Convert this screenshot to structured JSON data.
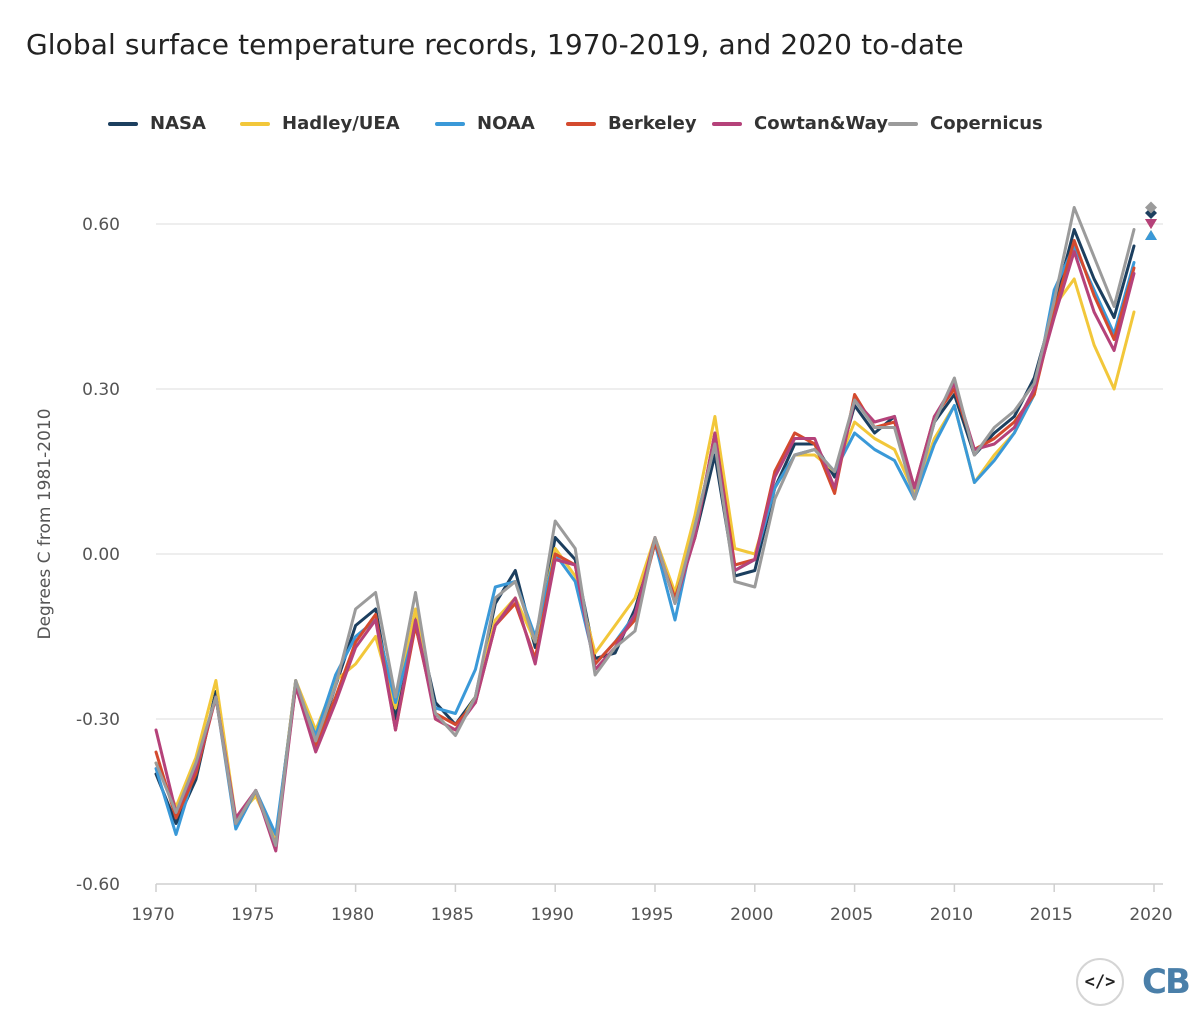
{
  "chart_data": {
    "type": "line",
    "title": "Global surface temperature records, 1970-2019, and 2020 to-date",
    "xlabel": "",
    "ylabel": "Degrees C from 1981-2010",
    "xlim": [
      1970,
      2020
    ],
    "ylim": [
      -0.6,
      0.6
    ],
    "x_ticks": [
      1970,
      1975,
      1980,
      1985,
      1990,
      1995,
      2000,
      2005,
      2010,
      2015,
      2020
    ],
    "y_ticks": [
      {
        "value": -0.6,
        "label": "-0.60"
      },
      {
        "value": -0.3,
        "label": "-0.30"
      },
      {
        "value": 0.0,
        "label": "0.00"
      },
      {
        "value": 0.3,
        "label": "0.30"
      },
      {
        "value": 0.6,
        "label": "0.60"
      }
    ],
    "grid": true,
    "legend_position": "top",
    "x": [
      1970,
      1971,
      1972,
      1973,
      1974,
      1975,
      1976,
      1977,
      1978,
      1979,
      1980,
      1981,
      1982,
      1983,
      1984,
      1985,
      1986,
      1987,
      1988,
      1989,
      1990,
      1991,
      1992,
      1993,
      1994,
      1995,
      1996,
      1997,
      1998,
      1999,
      2000,
      2001,
      2002,
      2003,
      2004,
      2005,
      2006,
      2007,
      2008,
      2009,
      2010,
      2011,
      2012,
      2013,
      2014,
      2015,
      2016,
      2017,
      2018,
      2019
    ],
    "series": [
      {
        "name": "NASA",
        "color": "#1c3f5f",
        "marker_2020": "diamond",
        "value_2020": 0.62,
        "values": [
          -0.4,
          -0.49,
          -0.41,
          -0.25,
          -0.49,
          -0.43,
          -0.52,
          -0.23,
          -0.35,
          -0.24,
          -0.13,
          -0.1,
          -0.3,
          -0.11,
          -0.27,
          -0.31,
          -0.26,
          -0.09,
          -0.03,
          -0.17,
          0.03,
          -0.01,
          -0.19,
          -0.18,
          -0.1,
          0.02,
          -0.07,
          0.03,
          0.18,
          -0.04,
          -0.03,
          0.12,
          0.2,
          0.2,
          0.14,
          0.27,
          0.22,
          0.25,
          0.11,
          0.24,
          0.29,
          0.18,
          0.22,
          0.25,
          0.32,
          0.45,
          0.59,
          0.5,
          0.43,
          0.56
        ]
      },
      {
        "name": "Hadley/UEA",
        "color": "#f2c73a",
        "marker_2020": "triangle-up",
        "value_2020": 0.58,
        "values": [
          -0.38,
          -0.46,
          -0.37,
          -0.23,
          -0.48,
          -0.44,
          -0.52,
          -0.23,
          -0.32,
          -0.23,
          -0.2,
          -0.15,
          -0.28,
          -0.1,
          -0.3,
          -0.32,
          -0.26,
          -0.12,
          -0.08,
          -0.16,
          0.01,
          -0.04,
          -0.18,
          -0.13,
          -0.08,
          0.03,
          -0.07,
          0.07,
          0.25,
          0.01,
          0.0,
          0.12,
          0.18,
          0.18,
          0.15,
          0.24,
          0.21,
          0.19,
          0.11,
          0.21,
          0.27,
          0.13,
          0.18,
          0.22,
          0.29,
          0.45,
          0.5,
          0.38,
          0.3,
          0.44
        ]
      },
      {
        "name": "NOAA",
        "color": "#3a99d8",
        "marker_2020": "triangle-up",
        "value_2020": 0.58,
        "values": [
          -0.39,
          -0.51,
          -0.39,
          -0.26,
          -0.5,
          -0.43,
          -0.51,
          -0.24,
          -0.33,
          -0.22,
          -0.15,
          -0.12,
          -0.27,
          -0.13,
          -0.28,
          -0.29,
          -0.21,
          -0.06,
          -0.05,
          -0.15,
          0.0,
          -0.05,
          -0.2,
          -0.16,
          -0.11,
          0.02,
          -0.12,
          0.05,
          0.2,
          -0.03,
          -0.01,
          0.12,
          0.18,
          0.19,
          0.15,
          0.22,
          0.19,
          0.17,
          0.1,
          0.2,
          0.27,
          0.13,
          0.17,
          0.22,
          0.29,
          0.48,
          0.56,
          0.48,
          0.4,
          0.53
        ]
      },
      {
        "name": "Berkeley",
        "color": "#d44a2e",
        "marker_2020": "triangle-down",
        "value_2020": 0.6,
        "values": [
          -0.36,
          -0.48,
          -0.4,
          -0.26,
          -0.49,
          -0.43,
          -0.53,
          -0.24,
          -0.35,
          -0.26,
          -0.16,
          -0.11,
          -0.32,
          -0.13,
          -0.29,
          -0.31,
          -0.27,
          -0.13,
          -0.09,
          -0.19,
          0.0,
          -0.02,
          -0.2,
          -0.16,
          -0.12,
          0.02,
          -0.08,
          0.03,
          0.22,
          -0.02,
          -0.01,
          0.15,
          0.22,
          0.2,
          0.11,
          0.29,
          0.23,
          0.24,
          0.12,
          0.25,
          0.3,
          0.19,
          0.21,
          0.24,
          0.29,
          0.44,
          0.57,
          0.47,
          0.39,
          0.52
        ]
      },
      {
        "name": "Cowtan&Way",
        "color": "#b5427a",
        "marker_2020": "triangle-down",
        "value_2020": 0.6,
        "values": [
          -0.32,
          -0.47,
          -0.39,
          -0.26,
          -0.48,
          -0.43,
          -0.54,
          -0.24,
          -0.36,
          -0.27,
          -0.17,
          -0.12,
          -0.32,
          -0.12,
          -0.3,
          -0.32,
          -0.27,
          -0.13,
          -0.08,
          -0.2,
          -0.01,
          -0.02,
          -0.21,
          -0.17,
          -0.11,
          0.03,
          -0.09,
          0.03,
          0.22,
          -0.03,
          -0.01,
          0.14,
          0.21,
          0.21,
          0.12,
          0.28,
          0.24,
          0.25,
          0.12,
          0.25,
          0.31,
          0.19,
          0.2,
          0.23,
          0.3,
          0.43,
          0.55,
          0.44,
          0.37,
          0.51
        ]
      },
      {
        "name": "Copernicus",
        "color": "#9b9b9b",
        "marker_2020": "diamond",
        "value_2020": 0.63,
        "values": [
          -0.38,
          -0.47,
          -0.38,
          -0.26,
          -0.49,
          -0.43,
          -0.53,
          -0.23,
          -0.34,
          -0.24,
          -0.1,
          -0.07,
          -0.26,
          -0.07,
          -0.29,
          -0.33,
          -0.26,
          -0.08,
          -0.05,
          -0.16,
          0.06,
          0.01,
          -0.22,
          -0.17,
          -0.14,
          0.03,
          -0.09,
          0.05,
          0.2,
          -0.05,
          -0.06,
          0.1,
          0.18,
          0.19,
          0.15,
          0.28,
          0.23,
          0.23,
          0.1,
          0.24,
          0.32,
          0.18,
          0.23,
          0.26,
          0.31,
          0.46,
          0.63,
          0.54,
          0.45,
          0.59
        ]
      }
    ]
  },
  "branding": {
    "embed_icon": "</>",
    "logo_text": "CB"
  }
}
